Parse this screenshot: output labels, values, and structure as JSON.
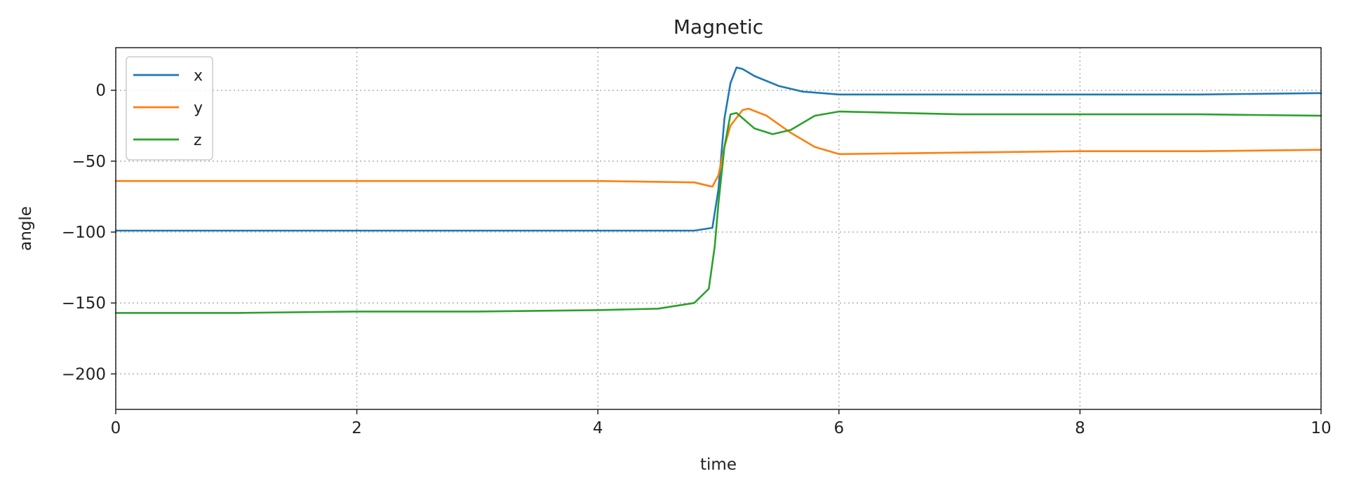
{
  "chart_data": {
    "type": "line",
    "title": "Magnetic",
    "xlabel": "time",
    "ylabel": "angle",
    "xlim": [
      0,
      10
    ],
    "ylim": [
      -225,
      30
    ],
    "x_ticks": [
      0,
      2,
      4,
      6,
      8,
      10
    ],
    "y_ticks": [
      0,
      -50,
      -100,
      -150,
      -200
    ],
    "x_tick_labels": [
      "0",
      "2",
      "4",
      "6",
      "8",
      "10"
    ],
    "y_tick_labels": [
      "0",
      "−50",
      "−100",
      "−150",
      "−200"
    ],
    "grid": true,
    "legend_position": "top-left",
    "series": [
      {
        "name": "x",
        "color": "#1f77b4",
        "points": [
          [
            0,
            -99
          ],
          [
            1,
            -99
          ],
          [
            2,
            -99
          ],
          [
            3,
            -99
          ],
          [
            4,
            -99
          ],
          [
            4.8,
            -99
          ],
          [
            4.95,
            -97
          ],
          [
            5.0,
            -70
          ],
          [
            5.05,
            -20
          ],
          [
            5.1,
            5
          ],
          [
            5.15,
            16
          ],
          [
            5.2,
            15
          ],
          [
            5.3,
            10
          ],
          [
            5.5,
            3
          ],
          [
            5.7,
            -1
          ],
          [
            6,
            -3
          ],
          [
            7,
            -3
          ],
          [
            8,
            -3
          ],
          [
            9,
            -3
          ],
          [
            10,
            -2
          ]
        ]
      },
      {
        "name": "y",
        "color": "#ff7f0e",
        "points": [
          [
            0,
            -64
          ],
          [
            1,
            -64
          ],
          [
            2,
            -64
          ],
          [
            3,
            -64
          ],
          [
            4,
            -64
          ],
          [
            4.8,
            -65
          ],
          [
            4.95,
            -68
          ],
          [
            5.0,
            -60
          ],
          [
            5.05,
            -40
          ],
          [
            5.1,
            -25
          ],
          [
            5.2,
            -14
          ],
          [
            5.25,
            -13
          ],
          [
            5.4,
            -18
          ],
          [
            5.6,
            -30
          ],
          [
            5.8,
            -40
          ],
          [
            6,
            -45
          ],
          [
            7,
            -44
          ],
          [
            8,
            -43
          ],
          [
            9,
            -43
          ],
          [
            10,
            -42
          ]
        ]
      },
      {
        "name": "z",
        "color": "#2ca02c",
        "points": [
          [
            0,
            -157
          ],
          [
            1,
            -157
          ],
          [
            2,
            -156
          ],
          [
            3,
            -156
          ],
          [
            4,
            -155
          ],
          [
            4.5,
            -154
          ],
          [
            4.8,
            -150
          ],
          [
            4.92,
            -140
          ],
          [
            4.97,
            -110
          ],
          [
            5.0,
            -80
          ],
          [
            5.05,
            -40
          ],
          [
            5.1,
            -17
          ],
          [
            5.15,
            -16
          ],
          [
            5.3,
            -27
          ],
          [
            5.45,
            -31
          ],
          [
            5.6,
            -28
          ],
          [
            5.8,
            -18
          ],
          [
            6,
            -15
          ],
          [
            7,
            -17
          ],
          [
            8,
            -17
          ],
          [
            9,
            -17
          ],
          [
            10,
            -18
          ]
        ]
      }
    ]
  }
}
